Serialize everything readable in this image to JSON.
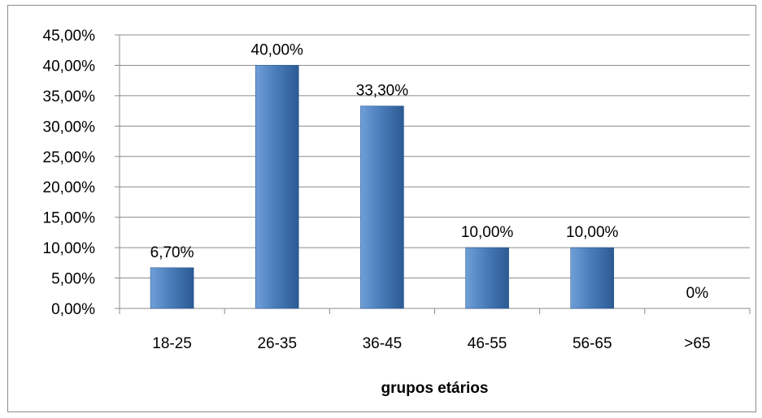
{
  "chart_data": {
    "type": "bar",
    "categories": [
      "18-25",
      "26-35",
      "36-45",
      "46-55",
      "56-65",
      ">65"
    ],
    "values": [
      6.7,
      40.0,
      33.3,
      10.0,
      10.0,
      0
    ],
    "data_labels": [
      "6,70%",
      "40,00%",
      "33,30%",
      "10,00%",
      "10,00%",
      "0%"
    ],
    "y_ticks": [
      "0,00%",
      "5,00%",
      "10,00%",
      "15,00%",
      "20,00%",
      "25,00%",
      "30,00%",
      "35,00%",
      "40,00%",
      "45,00%"
    ],
    "ylim": [
      0,
      45
    ],
    "y_step": 5,
    "xlabel": "grupos etários",
    "ylabel": "",
    "grid": true,
    "legend": "none",
    "colors": {
      "bar_light": "#6f9fd8",
      "bar_mid": "#4a7ebb",
      "bar_dark": "#2c5a93",
      "gridline": "#8c8c8c",
      "axis": "#8c8c8c"
    }
  }
}
